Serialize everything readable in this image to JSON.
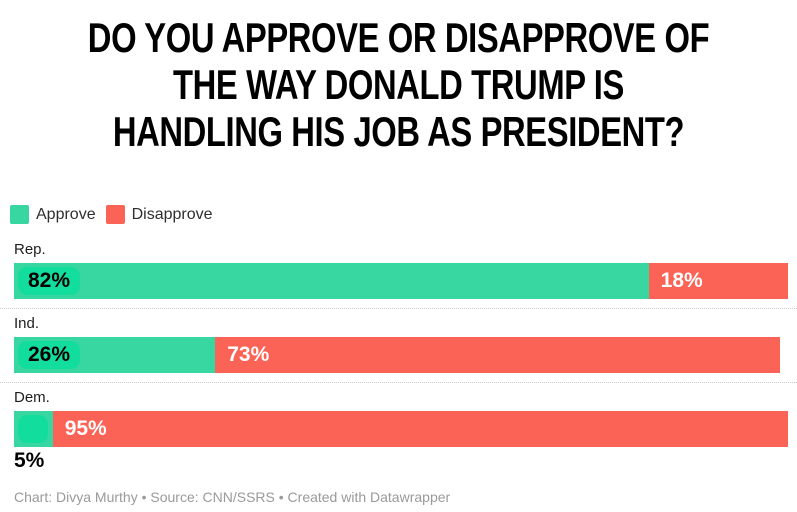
{
  "title": {
    "lines": [
      "DO YOU APPROVE OR DISAPPROVE OF",
      "THE WAY DONALD TRUMP IS",
      "HANDLING HIS JOB AS PRESIDENT?"
    ]
  },
  "legend": {
    "items": [
      {
        "label": "Approve",
        "color": "#38d6a1"
      },
      {
        "label": "Disapprove",
        "color": "#fa6355"
      }
    ]
  },
  "chart_data": {
    "type": "bar",
    "orientation": "horizontal",
    "stacked": true,
    "categories": [
      "Rep.",
      "Ind.",
      "Dem."
    ],
    "series": [
      {
        "name": "Approve",
        "color": "#38d6a1",
        "values": [
          82,
          26,
          5
        ]
      },
      {
        "name": "Disapprove",
        "color": "#fa6355",
        "values": [
          18,
          73,
          95
        ]
      }
    ],
    "value_suffix": "%",
    "xlim": [
      0,
      100
    ],
    "grid": false,
    "legend_position": "top-left"
  },
  "rows": [
    {
      "category": "Rep.",
      "approve_label": "82%",
      "disapprove_label": "18%"
    },
    {
      "category": "Ind.",
      "approve_label": "26%",
      "disapprove_label": "73%"
    },
    {
      "category": "Dem.",
      "approve_label": "5%",
      "disapprove_label": "95%"
    }
  ],
  "footer": {
    "text": "Chart: Divya Murthy • Source: CNN/SSRS • Created with Datawrapper"
  },
  "colors": {
    "approve": "#38d6a1",
    "approve-pill": "#13dd9d",
    "disapprove": "#fa6355",
    "title": "#000000",
    "category": "#1d1d1d",
    "legend-text": "#2e2e2e",
    "separator": "#cccccc",
    "footer": "#9a9a9a"
  }
}
